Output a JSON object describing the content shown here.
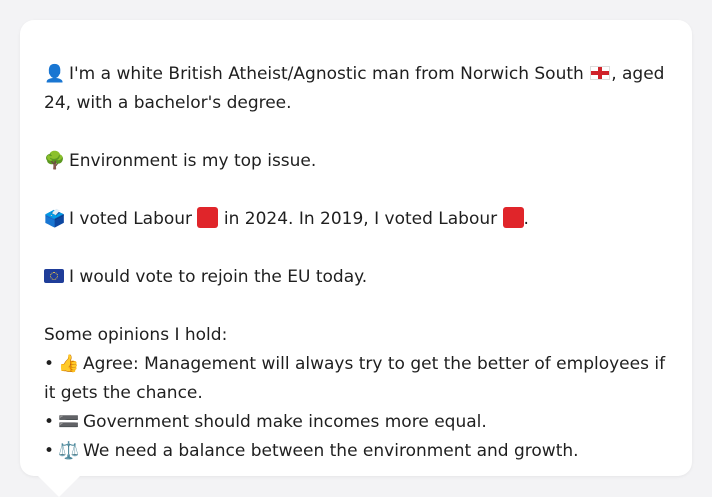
{
  "profile": {
    "intro_pre": "I'm a white British Atheist/Agnostic man from Norwich South",
    "intro_post": ", aged 24, with a bachelor's degree.",
    "person_icon": "👤",
    "flag_icon": "england-flag",
    "top_issue_icon": "🌳",
    "top_issue": "Environment is my top issue.",
    "vote_icon": "🗳️",
    "vote_2024_pre": "I voted Labour",
    "vote_2024_post": "in 2024. In 2019, I voted Labour",
    "vote_end": ".",
    "party_color": "#e0252a",
    "eu_icon": "eu-flag",
    "eu_text": "I would vote to rejoin the EU today."
  },
  "opinions": {
    "heading": "Some opinions I hold:",
    "items": [
      {
        "bullet": "•",
        "icon": "👍",
        "text": "Agree: Management will always try to get the better of employees if it gets the chance."
      },
      {
        "bullet": "•",
        "icon": "🟰",
        "text": "Government should make incomes more equal."
      },
      {
        "bullet": "•",
        "icon": "⚖️",
        "text": "We need a balance between the environment and growth."
      }
    ]
  }
}
